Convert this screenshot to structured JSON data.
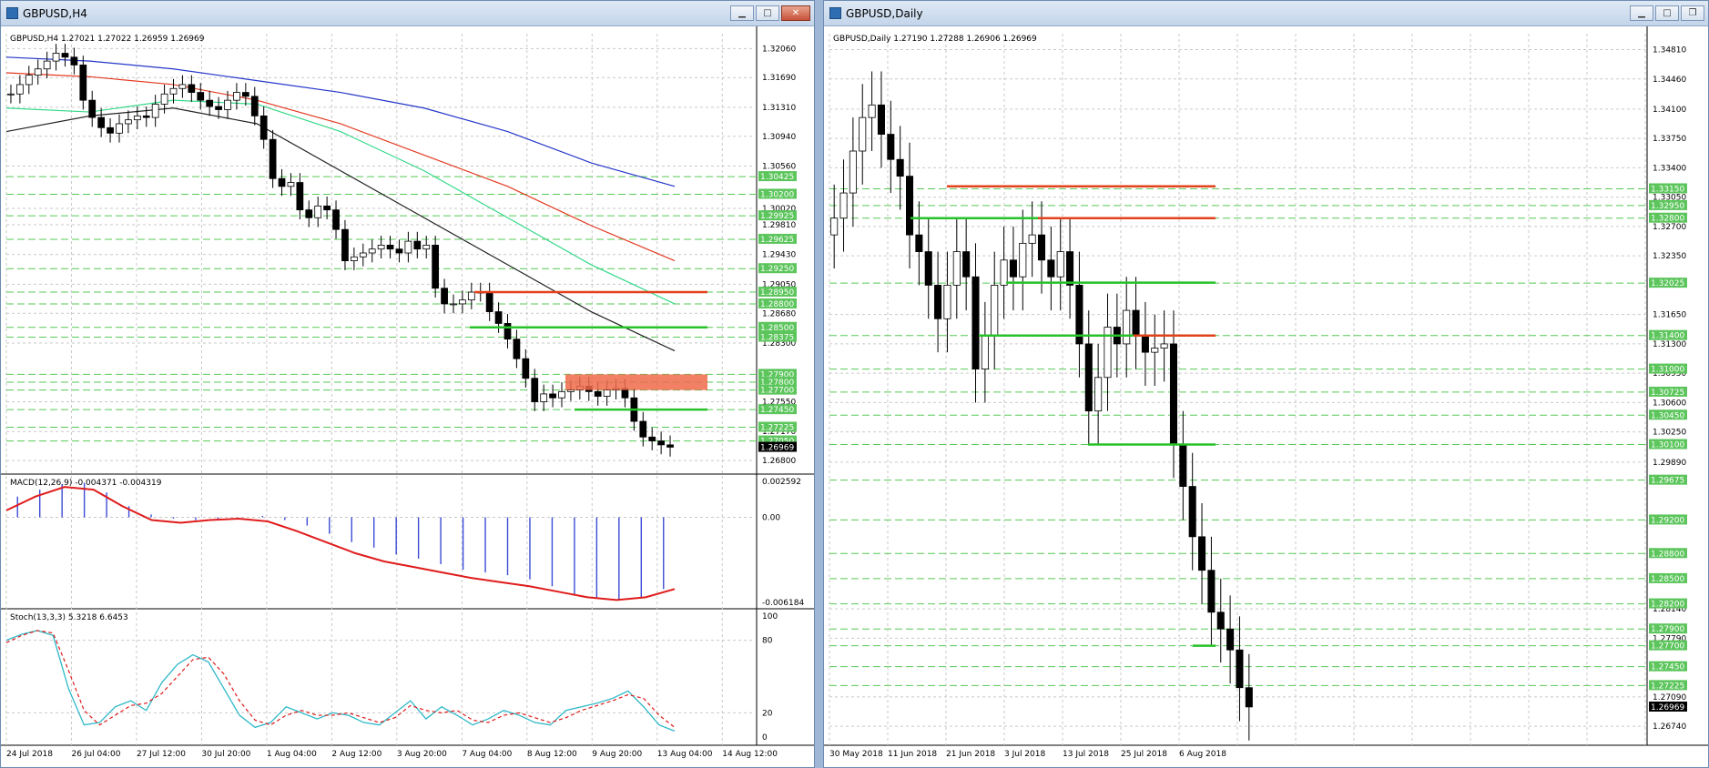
{
  "windows": [
    {
      "title": "GBPUSD,H4",
      "header": "GBPUSD,H4  1.27021 1.27022 1.26959 1.26969",
      "current_price": "1.26969",
      "price_axis": [
        "1.32060",
        "1.31690",
        "1.31310",
        "1.30940",
        "1.30560",
        "1.30020",
        "1.29810",
        "1.29430",
        "1.29050",
        "1.28680",
        "1.28300",
        "1.27550",
        "1.27170",
        "1.26800"
      ],
      "level_tags": [
        "1.30425",
        "1.30200",
        "1.29925",
        "1.29625",
        "1.29250",
        "1.28950",
        "1.28800",
        "1.28500",
        "1.28375",
        "1.27900",
        "1.27800",
        "1.27700",
        "1.27450",
        "1.27225",
        "1.27050"
      ],
      "date_axis": [
        "24 Jul 2018",
        "26 Jul 04:00",
        "27 Jul 12:00",
        "30 Jul 20:00",
        "1 Aug 04:00",
        "2 Aug 12:00",
        "3 Aug 20:00",
        "7 Aug 04:00",
        "8 Aug 12:00",
        "9 Aug 20:00",
        "13 Aug 04:00",
        "14 Aug 12:00"
      ],
      "macd": {
        "header": "MACD(12,26,9) -0.004371 -0.004319",
        "axis": [
          "0.002592",
          "0.00",
          "-0.006184"
        ]
      },
      "stoch": {
        "header": "Stoch(13,3,3) 5.3218 6.6453",
        "axis": [
          "100",
          "80",
          "20",
          "0"
        ]
      }
    },
    {
      "title": "GBPUSD,Daily",
      "header": "GBPUSD,Daily  1.27190 1.27288 1.26906 1.26969",
      "current_price": "1.26969",
      "price_axis": [
        "1.34810",
        "1.34460",
        "1.34100",
        "1.33750",
        "1.33400",
        "1.33050",
        "1.32700",
        "1.32350",
        "1.31650",
        "1.31300",
        "1.30950",
        "1.30600",
        "1.30250",
        "1.29890",
        "1.28140",
        "1.27790",
        "1.27090",
        "1.26740"
      ],
      "level_tags": [
        "1.33150",
        "1.32950",
        "1.32800",
        "1.32025",
        "1.31400",
        "1.31000",
        "1.30725",
        "1.30450",
        "1.30100",
        "1.29675",
        "1.29200",
        "1.28800",
        "1.28500",
        "1.28200",
        "1.27900",
        "1.27700",
        "1.27450",
        "1.27225"
      ],
      "date_axis": [
        "30 May 2018",
        "11 Jun 2018",
        "21 Jun 2018",
        "3 Jul 2018",
        "13 Jul 2018",
        "25 Jul 2018",
        "6 Aug 2018"
      ]
    }
  ],
  "chart_data": [
    {
      "type": "candlestick",
      "title": "GBPUSD,H4",
      "ylim": [
        1.2665,
        1.3225
      ],
      "ohlc_close_approx": [
        1.3148,
        1.316,
        1.3172,
        1.318,
        1.319,
        1.32,
        1.3195,
        1.3185,
        1.314,
        1.3118,
        1.3105,
        1.3098,
        1.311,
        1.3115,
        1.312,
        1.3118,
        1.3135,
        1.3148,
        1.3155,
        1.316,
        1.315,
        1.314,
        1.3132,
        1.3128,
        1.314,
        1.315,
        1.3145,
        1.312,
        1.309,
        1.304,
        1.303,
        1.3035,
        1.3,
        1.299,
        1.3005,
        1.3,
        1.2975,
        1.2935,
        1.294,
        1.2945,
        1.295,
        1.2955,
        1.295,
        1.2945,
        1.296,
        1.295,
        1.2955,
        1.29,
        1.288,
        1.288,
        1.2885,
        1.2895,
        1.2895,
        1.287,
        1.2855,
        1.2835,
        1.281,
        1.2785,
        1.2755,
        1.2765,
        1.276,
        1.2768,
        1.277,
        1.2775,
        1.2768,
        1.2762,
        1.277,
        1.2772,
        1.276,
        1.273,
        1.271,
        1.2705,
        1.27,
        1.2697
      ],
      "horizontal_levels": [
        {
          "price": 1.2895,
          "color": "#e3411b"
        },
        {
          "price": 1.285,
          "color": "#27c227"
        },
        {
          "price": 1.2745,
          "color": "#27c227"
        }
      ],
      "zone": {
        "from": 1.277,
        "to": 1.279,
        "color": "#ef6a4a"
      },
      "moving_averages": [
        {
          "color": "#2436c8",
          "values": [
            1.3195,
            1.319,
            1.318,
            1.3165,
            1.315,
            1.313,
            1.31,
            1.306,
            1.303
          ]
        },
        {
          "color": "#e33b22",
          "values": [
            1.3175,
            1.317,
            1.316,
            1.314,
            1.311,
            1.307,
            1.303,
            1.298,
            1.2935
          ]
        },
        {
          "color": "#35d98a",
          "values": [
            1.313,
            1.3125,
            1.314,
            1.3135,
            1.31,
            1.305,
            1.299,
            1.293,
            1.288
          ]
        },
        {
          "color": "#222222",
          "values": [
            1.31,
            1.312,
            1.313,
            1.311,
            1.305,
            1.299,
            1.293,
            1.287,
            1.282
          ]
        }
      ],
      "macd_hist": [
        0.0015,
        0.002,
        0.0024,
        0.0025,
        0.0018,
        0.0008,
        0.0002,
        -0.0001,
        -0.0002,
        -0.0001,
        0.0,
        0.0001,
        -0.0002,
        -0.0006,
        -0.0012,
        -0.0018,
        -0.0022,
        -0.0027,
        -0.003,
        -0.0034,
        -0.0038,
        -0.004,
        -0.0042,
        -0.0045,
        -0.005,
        -0.0056,
        -0.0059,
        -0.006,
        -0.0058,
        -0.0052
      ],
      "macd_signal": [
        0.0005,
        0.0015,
        0.0022,
        0.002,
        0.0008,
        -0.0002,
        -0.0004,
        -0.0002,
        -0.0001,
        -0.0003,
        -0.001,
        -0.0018,
        -0.0026,
        -0.0032,
        -0.0036,
        -0.004,
        -0.0044,
        -0.0047,
        -0.005,
        -0.0054,
        -0.0058,
        -0.006,
        -0.0058,
        -0.0052
      ],
      "stoch_k": [
        80,
        85,
        88,
        84,
        40,
        10,
        12,
        25,
        30,
        22,
        45,
        60,
        68,
        62,
        40,
        18,
        8,
        12,
        25,
        20,
        15,
        20,
        18,
        12,
        10,
        20,
        30,
        15,
        25,
        18,
        10,
        15,
        22,
        18,
        12,
        10,
        22,
        25,
        28,
        32,
        38,
        25,
        10,
        5
      ],
      "stoch_d": [
        78,
        84,
        88,
        86,
        55,
        22,
        10,
        18,
        26,
        28,
        36,
        50,
        64,
        66,
        52,
        30,
        14,
        10,
        18,
        22,
        18,
        18,
        20,
        16,
        12,
        16,
        26,
        22,
        20,
        22,
        14,
        12,
        18,
        20,
        16,
        12,
        16,
        22,
        26,
        30,
        35,
        32,
        18,
        8
      ]
    },
    {
      "type": "candlestick",
      "title": "GBPUSD,Daily",
      "ylim": [
        1.266,
        1.35
      ],
      "ohlc_close_approx": [
        1.328,
        1.331,
        1.336,
        1.34,
        1.3415,
        1.338,
        1.335,
        1.333,
        1.326,
        1.324,
        1.32,
        1.316,
        1.32,
        1.324,
        1.321,
        1.31,
        1.314,
        1.32,
        1.323,
        1.321,
        1.325,
        1.326,
        1.323,
        1.321,
        1.324,
        1.32,
        1.313,
        1.305,
        1.309,
        1.315,
        1.313,
        1.317,
        1.314,
        1.312,
        1.3125,
        1.313,
        1.301,
        1.296,
        1.29,
        1.286,
        1.281,
        1.279,
        1.2765,
        1.272,
        1.2697
      ],
      "horizontal_levels": [
        {
          "price": 1.3318,
          "color": "#e3411b"
        },
        {
          "price": 1.328,
          "color": "#27c227"
        },
        {
          "price": 1.328,
          "color": "#e3411b"
        },
        {
          "price": 1.3203,
          "color": "#27c227"
        },
        {
          "price": 1.314,
          "color": "#27c227"
        },
        {
          "price": 1.314,
          "color": "#e3411b"
        },
        {
          "price": 1.301,
          "color": "#27c227"
        },
        {
          "price": 1.277,
          "color": "#27c227"
        }
      ]
    }
  ]
}
